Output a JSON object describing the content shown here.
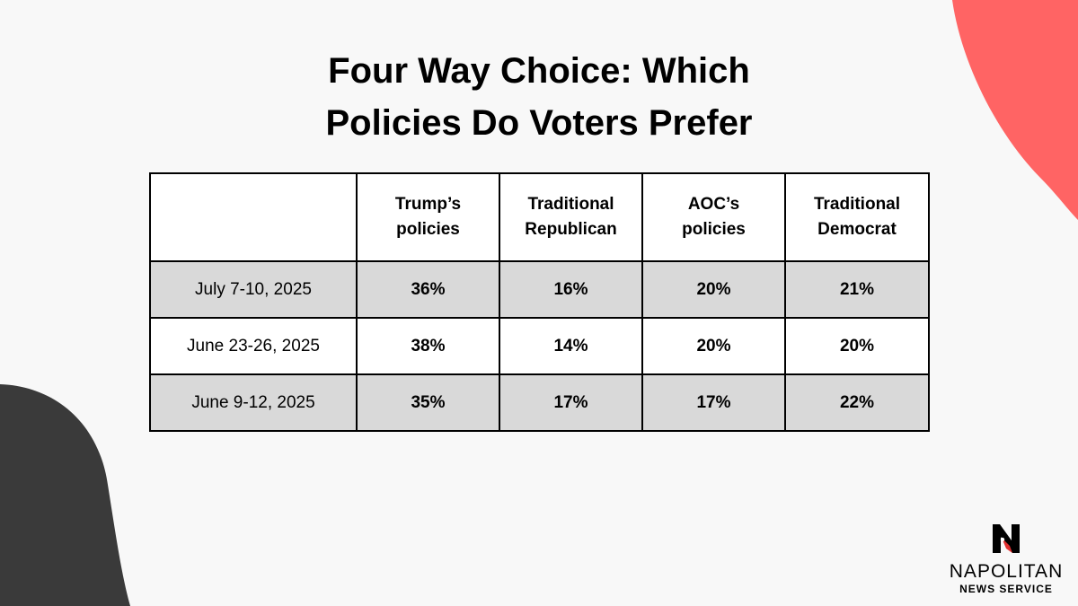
{
  "title": {
    "line1": "Four Way Choice: Which",
    "line2": "Policies Do Voters Prefer"
  },
  "table": {
    "corner": "",
    "columns": [
      "Trump’s\npolicies",
      "Traditional\nRepublican",
      "AOC’s\npolicies",
      "Traditional\nDemocrat"
    ],
    "rows": [
      {
        "date": "July 7-10, 2025",
        "values": [
          "36%",
          "16%",
          "20%",
          "21%"
        ]
      },
      {
        "date": "June 23-26, 2025",
        "values": [
          "38%",
          "14%",
          "20%",
          "20%"
        ]
      },
      {
        "date": "June 9-12, 2025",
        "values": [
          "35%",
          "17%",
          "17%",
          "22%"
        ]
      }
    ]
  },
  "logo": {
    "icon": "napolitan-n-logo-icon",
    "brand": "NAPOLITAN",
    "subtitle": "NEWS SERVICE"
  },
  "colors": {
    "background": "#f8f8f8",
    "accent_blob": "#ff6464",
    "dark_blob": "#3a3a3a",
    "row_shade": "#d9d9d9"
  }
}
